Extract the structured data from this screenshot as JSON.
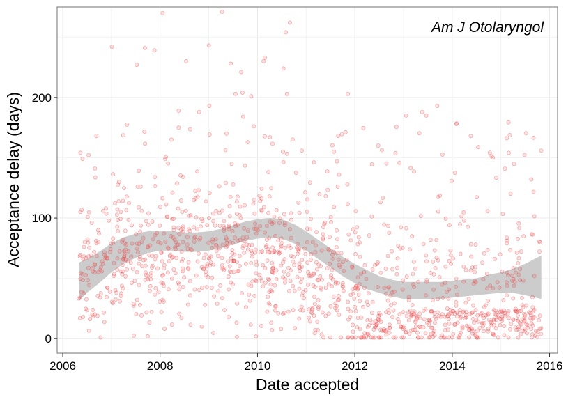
{
  "chart_data": {
    "type": "scatter",
    "title": "",
    "annotation": "Am J Otolaryngol",
    "xlabel": "Date accepted",
    "ylabel": "Acceptance delay (days)",
    "xlim": [
      "2005-11-20",
      "2016-03-01"
    ],
    "ylim": [
      -12,
      275
    ],
    "x_ticks": [
      {
        "value": "2006-01-01",
        "label": "2006"
      },
      {
        "value": "2008-01-01",
        "label": "2008"
      },
      {
        "value": "2010-01-01",
        "label": "2010"
      },
      {
        "value": "2012-01-01",
        "label": "2012"
      },
      {
        "value": "2014-01-01",
        "label": "2014"
      },
      {
        "value": "2016-01-01",
        "label": "2016"
      }
    ],
    "y_ticks": [
      {
        "value": 0,
        "label": "0"
      },
      {
        "value": 100,
        "label": "100"
      },
      {
        "value": 200,
        "label": "200"
      }
    ],
    "grid": true,
    "colors": {
      "points": "#e8484b",
      "ribbon": "#c9c9c9",
      "grid": "#ebebeb",
      "panel_border": "#888888"
    },
    "points": {
      "x_range": [
        "2006-05-01",
        "2015-10-31"
      ],
      "count": 1350,
      "outliers": [
        {
          "x": "2007-01-05",
          "y": 242
        },
        {
          "x": "2007-07-10",
          "y": 227
        },
        {
          "x": "2007-09-10",
          "y": 241
        },
        {
          "x": "2007-11-20",
          "y": 239
        },
        {
          "x": "2008-01-20",
          "y": 270
        },
        {
          "x": "2008-05-20",
          "y": 189
        },
        {
          "x": "2008-07-15",
          "y": 230
        },
        {
          "x": "2008-10-20",
          "y": 188
        },
        {
          "x": "2009-01-01",
          "y": 243
        },
        {
          "x": "2009-01-05",
          "y": 193
        },
        {
          "x": "2009-04-10",
          "y": 271
        },
        {
          "x": "2009-06-15",
          "y": 228
        },
        {
          "x": "2009-07-20",
          "y": 203
        },
        {
          "x": "2009-09-01",
          "y": 221
        },
        {
          "x": "2009-09-10",
          "y": 204
        },
        {
          "x": "2009-09-15",
          "y": 184
        },
        {
          "x": "2009-11-15",
          "y": 201
        },
        {
          "x": "2010-02-15",
          "y": 230
        },
        {
          "x": "2010-02-25",
          "y": 233
        },
        {
          "x": "2010-07-15",
          "y": 224
        },
        {
          "x": "2010-08-01",
          "y": 254
        },
        {
          "x": "2010-08-10",
          "y": 203
        },
        {
          "x": "2010-09-01",
          "y": 262
        },
        {
          "x": "2011-11-10",
          "y": 203
        },
        {
          "x": "2013-01-20",
          "y": 185
        },
        {
          "x": "2013-05-20",
          "y": 188
        },
        {
          "x": "2013-06-20",
          "y": 185
        },
        {
          "x": "2013-09-10",
          "y": 193
        },
        {
          "x": "2014-02-01",
          "y": 178
        },
        {
          "x": "2014-05-20",
          "y": 168
        },
        {
          "x": "2015-03-01",
          "y": 154
        }
      ]
    },
    "smooth": {
      "x": [
        "2006-05-01",
        "2006-07-01",
        "2006-10-01",
        "2007-01-01",
        "2007-04-01",
        "2007-07-01",
        "2007-10-01",
        "2008-01-01",
        "2008-04-01",
        "2008-07-01",
        "2008-10-01",
        "2009-01-01",
        "2009-04-01",
        "2009-07-01",
        "2009-10-01",
        "2010-01-01",
        "2010-04-01",
        "2010-07-01",
        "2010-10-01",
        "2011-01-01",
        "2011-04-01",
        "2011-07-01",
        "2011-10-01",
        "2012-01-01",
        "2012-04-01",
        "2012-07-01",
        "2012-10-01",
        "2013-01-01",
        "2013-04-01",
        "2013-07-01",
        "2013-10-01",
        "2014-01-01",
        "2014-04-01",
        "2014-07-01",
        "2014-10-01",
        "2015-01-01",
        "2015-04-01",
        "2015-07-01",
        "2015-10-31"
      ],
      "fit": [
        47,
        52,
        59,
        67,
        73,
        77,
        80,
        81,
        81,
        80,
        80,
        81,
        83,
        86,
        89,
        91,
        92,
        91,
        87,
        81,
        74,
        67,
        60,
        54,
        49,
        45,
        42,
        40,
        40,
        40,
        40,
        41,
        42,
        43,
        45,
        46,
        47,
        49,
        51
      ],
      "lower": [
        31,
        38,
        46,
        55,
        62,
        67,
        71,
        73,
        73,
        72,
        72,
        73,
        75,
        78,
        81,
        83,
        84,
        83,
        79,
        73,
        66,
        59,
        52,
        46,
        41,
        38,
        35,
        33,
        33,
        33,
        33,
        34,
        35,
        36,
        37,
        38,
        38,
        36,
        33
      ],
      "upper": [
        63,
        66,
        72,
        79,
        84,
        87,
        89,
        89,
        89,
        88,
        88,
        89,
        91,
        94,
        97,
        99,
        100,
        99,
        95,
        89,
        82,
        75,
        68,
        62,
        57,
        52,
        49,
        47,
        47,
        47,
        47,
        48,
        49,
        50,
        53,
        55,
        58,
        62,
        69
      ]
    }
  }
}
